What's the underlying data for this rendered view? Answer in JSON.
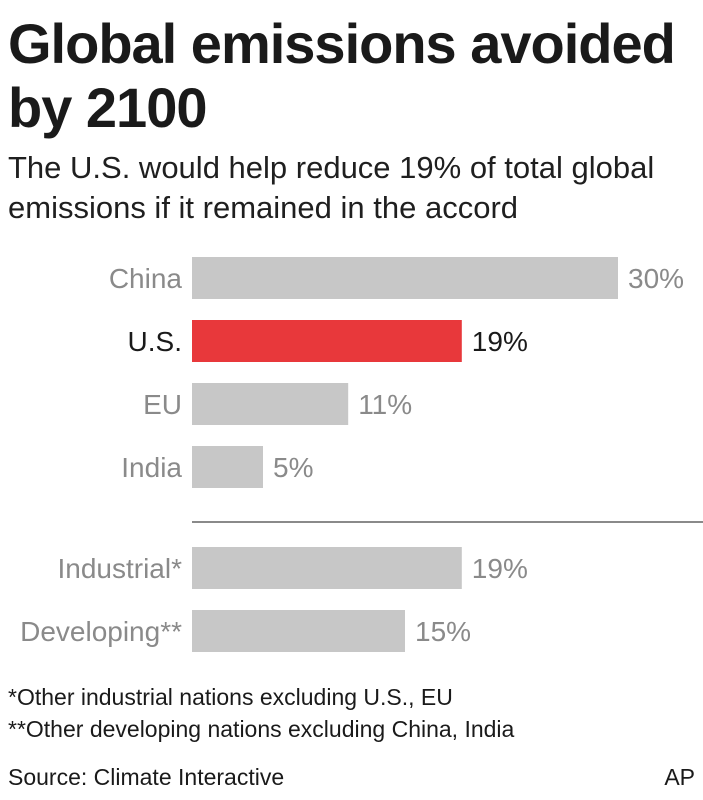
{
  "title": "Global emissions avoided by 2100",
  "subtitle": "The U.S. would help reduce 19% of total global emissions if it remained in the accord",
  "colors": {
    "bar": "#c7c7c7",
    "highlight": "#e8383b",
    "muted_text": "#8a8a8a",
    "highlight_text": "#1a1a1a",
    "divider": "#8a8a8a"
  },
  "chart_data": {
    "type": "bar",
    "orientation": "horizontal",
    "xlim": [
      0,
      30
    ],
    "grid": false,
    "legend": "none",
    "groups": [
      {
        "categories": [
          "China",
          "U.S.",
          "EU",
          "India"
        ],
        "values": [
          30,
          19,
          11,
          5
        ],
        "labels": [
          "30%",
          "19%",
          "11%",
          "5%"
        ],
        "highlight": [
          false,
          true,
          false,
          false
        ]
      },
      {
        "categories": [
          "Industrial*",
          "Developing**"
        ],
        "values": [
          19,
          15
        ],
        "labels": [
          "19%",
          "15%"
        ],
        "highlight": [
          false,
          false
        ]
      }
    ]
  },
  "footnotes": [
    "*Other industrial nations excluding U.S., EU",
    "**Other developing nations excluding China, India"
  ],
  "source": "Source: Climate Interactive",
  "credit": "AP"
}
